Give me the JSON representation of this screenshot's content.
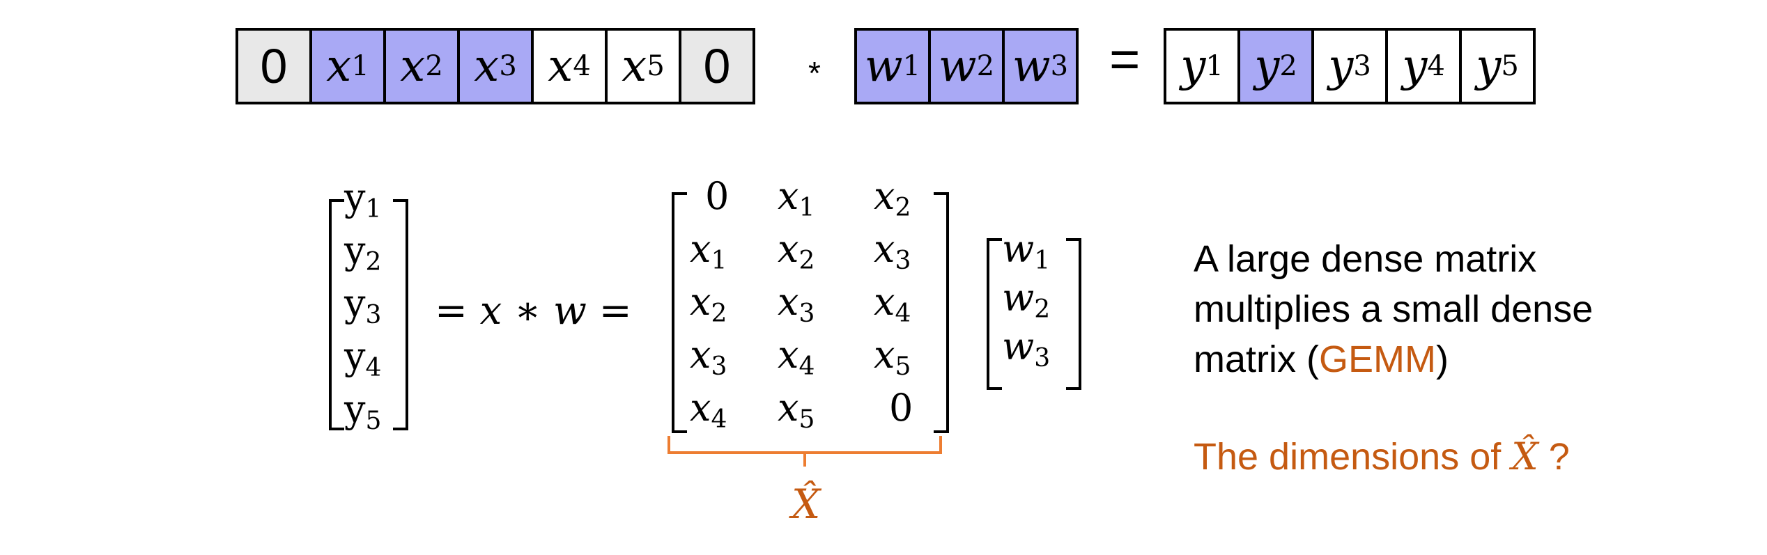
{
  "top": {
    "x_cells": [
      {
        "text": "0",
        "sub": "",
        "fill": "#E8E8E8",
        "zero": true
      },
      {
        "text": "x",
        "sub": "1",
        "fill": "#A9A9F5"
      },
      {
        "text": "x",
        "sub": "2",
        "fill": "#A9A9F5"
      },
      {
        "text": "x",
        "sub": "3",
        "fill": "#A9A9F5"
      },
      {
        "text": "x",
        "sub": "4",
        "fill": "#FFFFFF"
      },
      {
        "text": "x",
        "sub": "5",
        "fill": "#FFFFFF"
      },
      {
        "text": "0",
        "sub": "",
        "fill": "#E8E8E8",
        "zero": true
      }
    ],
    "conv_op": "*",
    "w_cells": [
      {
        "text": "w",
        "sub": "1",
        "fill": "#A9A9F5"
      },
      {
        "text": "w",
        "sub": "2",
        "fill": "#A9A9F5"
      },
      {
        "text": "w",
        "sub": "3",
        "fill": "#A9A9F5"
      }
    ],
    "equals": "=",
    "y_cells": [
      {
        "text": "y",
        "sub": "1",
        "fill": "#FFFFFF"
      },
      {
        "text": "y",
        "sub": "2",
        "fill": "#A9A9F5"
      },
      {
        "text": "y",
        "sub": "3",
        "fill": "#FFFFFF"
      },
      {
        "text": "y",
        "sub": "4",
        "fill": "#FFFFFF"
      },
      {
        "text": "y",
        "sub": "5",
        "fill": "#FFFFFF"
      }
    ]
  },
  "equation": {
    "y_vector": [
      [
        "y",
        "1"
      ],
      [
        "y",
        "2"
      ],
      [
        "y",
        "3"
      ],
      [
        "y",
        "4"
      ],
      [
        "y",
        "5"
      ]
    ],
    "middle": "= x ∗ w =",
    "x_hat_matrix": [
      [
        [
          "0",
          ""
        ],
        [
          "x",
          "1"
        ],
        [
          "x",
          "2"
        ]
      ],
      [
        [
          "x",
          "1"
        ],
        [
          "x",
          "2"
        ],
        [
          "x",
          "3"
        ]
      ],
      [
        [
          "x",
          "2"
        ],
        [
          "x",
          "3"
        ],
        [
          "x",
          "4"
        ]
      ],
      [
        [
          "x",
          "3"
        ],
        [
          "x",
          "4"
        ],
        [
          "x",
          "5"
        ]
      ],
      [
        [
          "x",
          "4"
        ],
        [
          "x",
          "5"
        ],
        [
          "0",
          ""
        ]
      ]
    ],
    "w_vector": [
      [
        "w",
        "1"
      ],
      [
        "w",
        "2"
      ],
      [
        "w",
        "3"
      ]
    ],
    "brace_label": "X̂"
  },
  "side": {
    "line1": "A large dense matrix",
    "line2": "multiplies a small dense",
    "line3_prefix": "matrix  (",
    "gemm": "GEMM",
    "line3_suffix": ")",
    "question_prefix": "The dimensions of ",
    "question_symbol": "X̂",
    "question_suffix": " ?"
  },
  "colors": {
    "highlight": "#A9A9F5",
    "pad": "#E8E8E8",
    "accent": "#C55A11"
  }
}
